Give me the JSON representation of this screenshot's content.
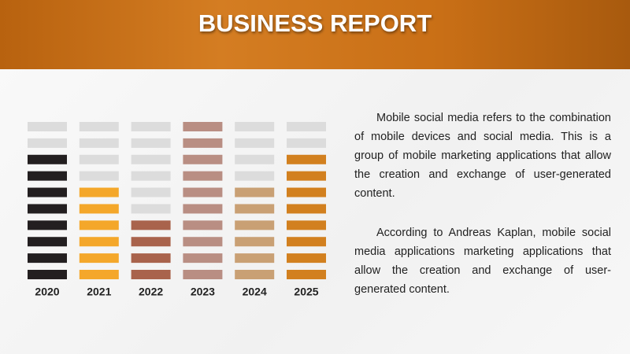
{
  "header": {
    "title": "BUSINESS REPORT"
  },
  "chart_data": {
    "type": "block",
    "categories": [
      "2020",
      "2021",
      "2022",
      "2023",
      "2024",
      "2025"
    ],
    "values": [
      8,
      6,
      4,
      10,
      6,
      8
    ],
    "colors": [
      "#231f20",
      "#f4a72a",
      "#a9634c",
      "#b98e83",
      "#c9a074",
      "#d2801f"
    ],
    "empty_color": "#dcdcdc",
    "ylim": [
      0,
      10
    ]
  },
  "text": {
    "paragraphs": [
      "Mobile social media refers to the combination of mobile devices and social media. This is a group of mobile marketing applications that allow the creation and exchange of user-generated content.",
      "According to Andreas Kaplan, mobile social media applications marketing applications that allow the creation and exchange of user-generated content."
    ]
  }
}
